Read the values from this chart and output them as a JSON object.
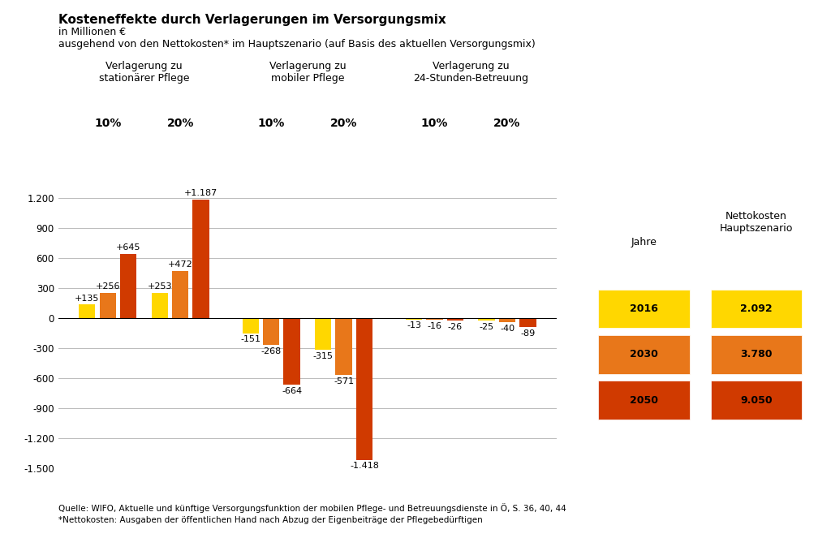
{
  "title": "Kosteneffekte durch Verlagerungen im Versorgungsmix",
  "subtitle1": "in Millionen €",
  "subtitle2": "ausgehend von den Nettokosten* im Hauptszenario (auf Basis des aktuellen Versorgungsmix)",
  "source_line1": "Quelle: WIFO, Aktuelle und künftige Versorgungsfunktion der mobilen Pflege- und Betreuungsdienste in Ö, S. 36, 40, 44",
  "source_line2": "*Nettokosten: Ausgaben der öffentlichen Hand nach Abzug der Eigenbeiträge der Pflegebedürftigen",
  "colors": {
    "2016": "#FFD700",
    "2030": "#E8771A",
    "2050": "#D03A00"
  },
  "legend": {
    "jahre": [
      "2016",
      "2030",
      "2050"
    ],
    "nettokosten": [
      "2.092",
      "3.780",
      "9.050"
    ],
    "colors": [
      "#FFD700",
      "#E8771A",
      "#D03A00"
    ]
  },
  "group_headers": [
    "Verlagerung zu\nstationärer Pflege",
    "Verlagerung zu\nmobiler Pflege",
    "Verlagerung zu\n24-Stunden-Betreuung"
  ],
  "groups": [
    {
      "name": "stat_10",
      "values": [
        135,
        256,
        645
      ],
      "labels": [
        "+135",
        "+256",
        "+645"
      ]
    },
    {
      "name": "stat_20",
      "values": [
        253,
        472,
        1187
      ],
      "labels": [
        "+253",
        "+472",
        "+1.187"
      ]
    },
    {
      "name": "mob_10",
      "values": [
        -151,
        -268,
        -664
      ],
      "labels": [
        "-151",
        "-268",
        "-664"
      ]
    },
    {
      "name": "mob_20",
      "values": [
        -315,
        -571,
        -1418
      ],
      "labels": [
        "-315",
        "-571",
        "-1.418"
      ]
    },
    {
      "name": "h24_10",
      "values": [
        -13,
        -16,
        -26
      ],
      "labels": [
        "-13",
        "-16",
        "-26"
      ]
    },
    {
      "name": "h24_20",
      "values": [
        -25,
        -40,
        -89
      ],
      "labels": [
        "-25",
        "-40",
        "-89"
      ]
    }
  ],
  "pct_labels": [
    "10%",
    "20%",
    "10%",
    "20%",
    "10%",
    "20%"
  ],
  "ylim": [
    -1500,
    1300
  ],
  "yticks": [
    -1500,
    -1200,
    -900,
    -600,
    -300,
    0,
    300,
    600,
    900,
    1200
  ],
  "ytick_labels": [
    "-1.500",
    "-1.200",
    "-900",
    "-600",
    "-300",
    "0",
    "300",
    "600",
    "900",
    "1.200"
  ],
  "background_color": "#FFFFFF"
}
